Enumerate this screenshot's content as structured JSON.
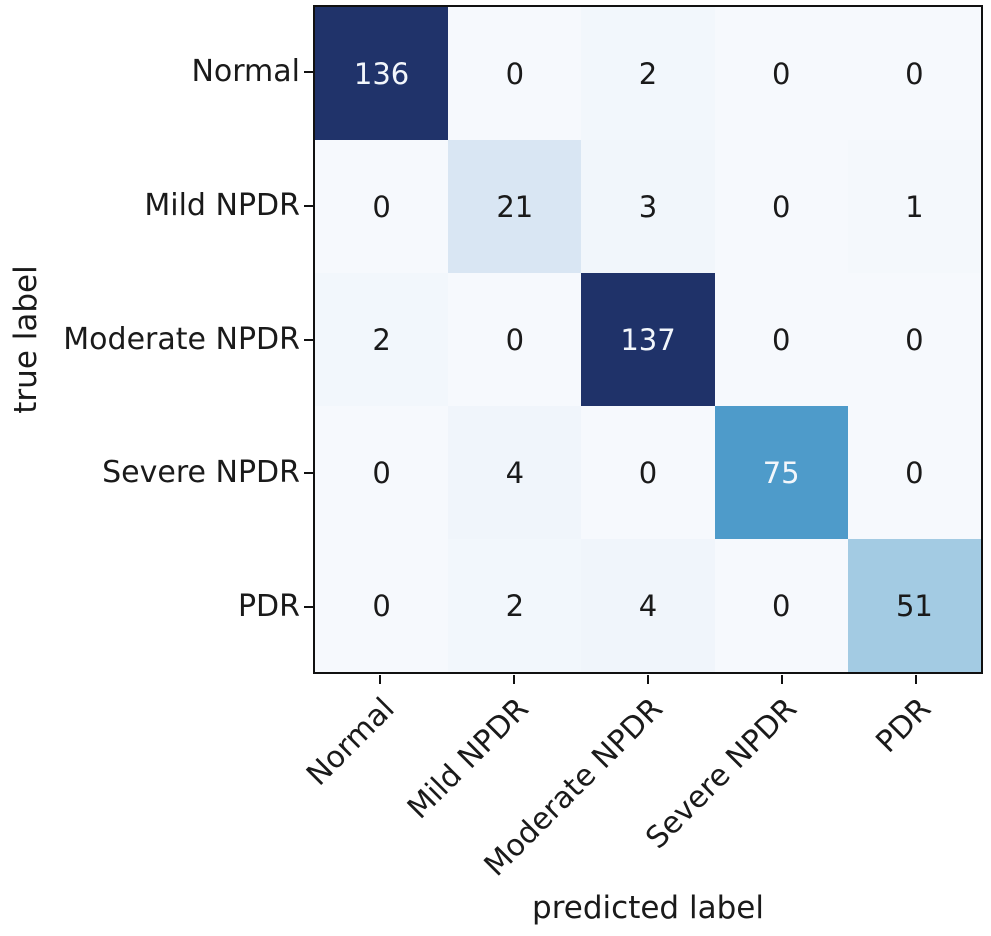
{
  "figure": {
    "xlabel": "predicted label",
    "ylabel": "true label"
  },
  "chart_data": {
    "type": "heatmap",
    "title": "",
    "xlabel": "predicted label",
    "ylabel": "true label",
    "colormap": "Blues",
    "x_categories": [
      "Normal",
      "Mild NPDR",
      "Moderate NPDR",
      "Severe NPDR",
      "PDR"
    ],
    "y_categories": [
      "Normal",
      "Mild NPDR",
      "Moderate NPDR",
      "Severe NPDR",
      "PDR"
    ],
    "matrix": [
      [
        136,
        0,
        2,
        0,
        0
      ],
      [
        0,
        21,
        3,
        0,
        1
      ],
      [
        2,
        0,
        137,
        0,
        0
      ],
      [
        0,
        4,
        0,
        75,
        0
      ],
      [
        0,
        2,
        4,
        0,
        51
      ]
    ],
    "cell_colors": [
      [
        "#20336a",
        "#f6f9fd",
        "#f2f7fc",
        "#f6f9fd",
        "#f6f9fd"
      ],
      [
        "#f6f9fd",
        "#d9e6f3",
        "#f1f6fb",
        "#f6f9fd",
        "#f4f8fc"
      ],
      [
        "#f2f7fc",
        "#f6f9fd",
        "#1f3269",
        "#f6f9fd",
        "#f6f9fd"
      ],
      [
        "#f6f9fd",
        "#f0f5fb",
        "#f6f9fd",
        "#4e9bca",
        "#f6f9fd"
      ],
      [
        "#f6f9fd",
        "#f2f7fc",
        "#f0f5fb",
        "#f6f9fd",
        "#a3cbe3"
      ]
    ],
    "white_text_min": 75,
    "colors": {
      "text_dark": "#1a1a1a",
      "text_light": "#f2f6fb",
      "spine": "#111111",
      "background": "#ffffff"
    },
    "grid": "off",
    "legend": "none",
    "value_range": [
      0,
      137
    ]
  }
}
